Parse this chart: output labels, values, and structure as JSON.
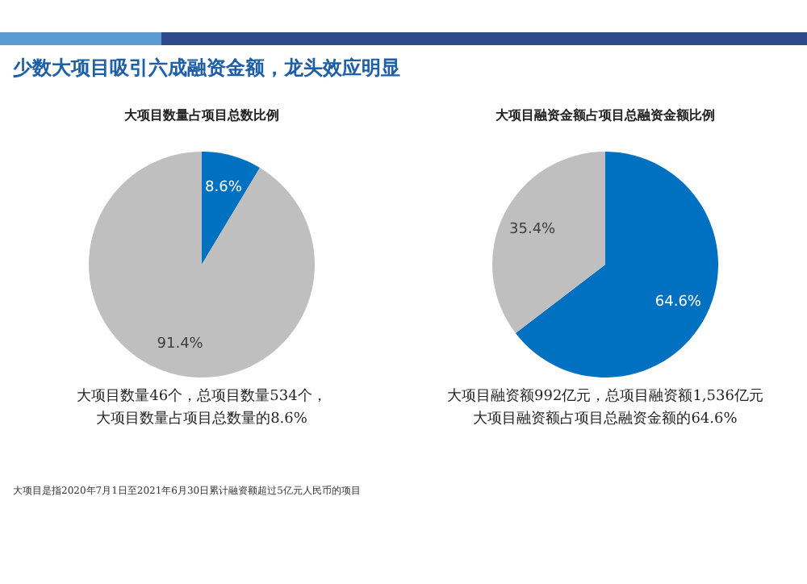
{
  "chart_data": [
    {
      "type": "other",
      "title": "少数大项目吸引六成融资金额，龙头效应明显",
      "annotations": [
        "大项目是指2020年7月1日至2021年6月30日累计融资额超过5亿元人民币的项目"
      ]
    },
    {
      "type": "pie",
      "title": "大项目数量占项目总数比例",
      "categories": [
        null,
        null
      ],
      "values": [
        8.6,
        91.4
      ],
      "colors": [
        "#0070c0",
        "#bfbfbf"
      ],
      "value_labels": [
        "8.6%",
        "91.4%"
      ],
      "annotations": [
        "大项目数量46个，总项目数量534个，",
        "大项目数量占项目总数量的8.6%"
      ]
    },
    {
      "type": "pie",
      "title": "大项目融资金额占项目总融资金额比例",
      "categories": [
        null,
        null
      ],
      "values": [
        64.6,
        35.4
      ],
      "colors": [
        "#0070c0",
        "#bfbfbf"
      ],
      "value_labels": [
        "64.6%",
        "35.4%"
      ],
      "annotations": [
        "大项目融资额992亿元，总项目融资额1,536亿元",
        "大项目融资额占项目总融资金额的64.6%"
      ]
    }
  ]
}
